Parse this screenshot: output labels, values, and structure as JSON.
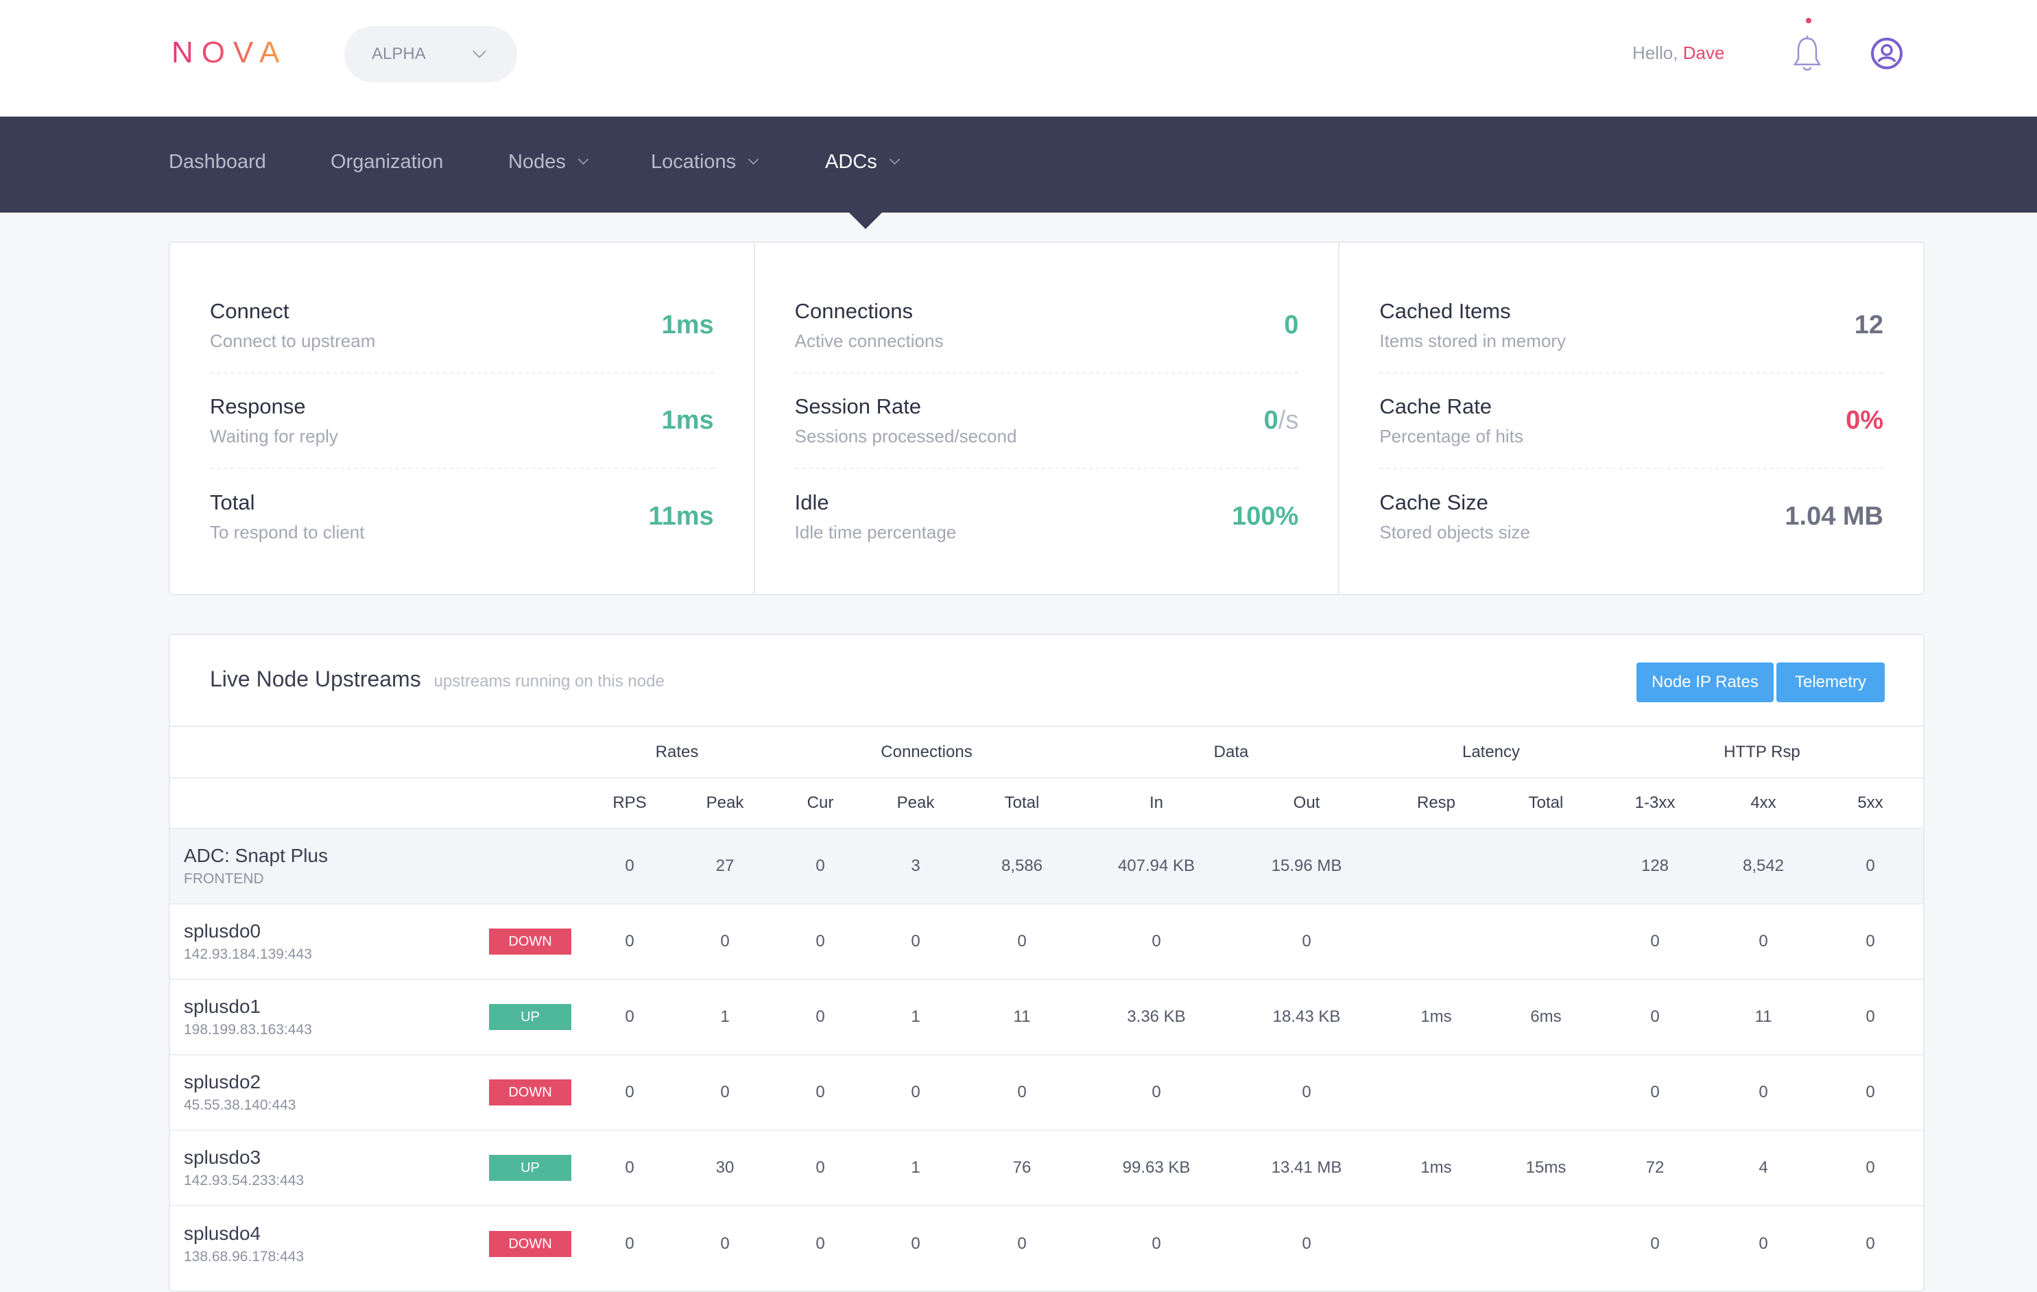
{
  "header": {
    "logo": "NOVA",
    "org_select": "ALPHA",
    "greeting": "Hello,",
    "user": "Dave",
    "icons": {
      "bell": "bell-icon",
      "user": "user-circle-icon"
    }
  },
  "nav": {
    "items": [
      {
        "label": "Dashboard",
        "dropdown": false
      },
      {
        "label": "Organization",
        "dropdown": false
      },
      {
        "label": "Nodes",
        "dropdown": true
      },
      {
        "label": "Locations",
        "dropdown": true
      },
      {
        "label": "ADCs",
        "dropdown": true,
        "active": true
      }
    ]
  },
  "stats": {
    "columns": [
      [
        {
          "title": "Connect",
          "subtitle": "Connect to upstream",
          "value": "1ms",
          "color": "#4fb89a"
        },
        {
          "title": "Response",
          "subtitle": "Waiting for reply",
          "value": "1ms",
          "color": "#4fb89a"
        },
        {
          "title": "Total",
          "subtitle": "To respond to client",
          "value": "11ms",
          "color": "#4fb89a"
        }
      ],
      [
        {
          "title": "Connections",
          "subtitle": "Active connections",
          "value": "0",
          "color": "#4fb89a"
        },
        {
          "title": "Session Rate",
          "subtitle": "Sessions processed/second",
          "value": "0",
          "unit": "/s",
          "color": "#4fb89a"
        },
        {
          "title": "Idle",
          "subtitle": "Idle time percentage",
          "value": "100%",
          "color": "#4fb89a"
        }
      ],
      [
        {
          "title": "Cached Items",
          "subtitle": "Items stored in memory",
          "value": "12",
          "color": "#6e7181"
        },
        {
          "title": "Cache Rate",
          "subtitle": "Percentage of hits",
          "value": "0%",
          "color": "#e8456a"
        },
        {
          "title": "Cache Size",
          "subtitle": "Stored objects size",
          "value": "1.04 MB",
          "color": "#6e7181"
        }
      ]
    ]
  },
  "upstreams": {
    "title": "Live Node Upstreams",
    "subtitle": "upstreams running on this node",
    "buttons": {
      "rates": "Node IP Rates",
      "telemetry": "Telemetry"
    },
    "groups": [
      "Rates",
      "Connections",
      "Data",
      "Latency",
      "HTTP Rsp"
    ],
    "columns": [
      "RPS",
      "Peak",
      "Cur",
      "Peak",
      "Total",
      "In",
      "Out",
      "Resp",
      "Total",
      "1-3xx",
      "4xx",
      "5xx"
    ],
    "rows": [
      {
        "name": "ADC: Snapt Plus",
        "sub": "FRONTEND",
        "status": "",
        "frontend": true,
        "values": [
          "0",
          "27",
          "0",
          "3",
          "8,586",
          "407.94 KB",
          "15.96 MB",
          "",
          "",
          "128",
          "8,542",
          "0"
        ]
      },
      {
        "name": "splusdo0",
        "sub": "142.93.184.139:443",
        "status": "DOWN",
        "values": [
          "0",
          "0",
          "0",
          "0",
          "0",
          "0",
          "0",
          "",
          "",
          "0",
          "0",
          "0"
        ]
      },
      {
        "name": "splusdo1",
        "sub": "198.199.83.163:443",
        "status": "UP",
        "values": [
          "0",
          "1",
          "0",
          "1",
          "11",
          "3.36 KB",
          "18.43 KB",
          "1ms",
          "6ms",
          "0",
          "11",
          "0"
        ]
      },
      {
        "name": "splusdo2",
        "sub": "45.55.38.140:443",
        "status": "DOWN",
        "values": [
          "0",
          "0",
          "0",
          "0",
          "0",
          "0",
          "0",
          "",
          "",
          "0",
          "0",
          "0"
        ]
      },
      {
        "name": "splusdo3",
        "sub": "142.93.54.233:443",
        "status": "UP",
        "values": [
          "0",
          "30",
          "0",
          "1",
          "76",
          "99.63 KB",
          "13.41 MB",
          "1ms",
          "15ms",
          "72",
          "4",
          "0"
        ]
      },
      {
        "name": "splusdo4",
        "sub": "138.68.96.178:443",
        "status": "DOWN",
        "values": [
          "0",
          "0",
          "0",
          "0",
          "0",
          "0",
          "0",
          "",
          "",
          "0",
          "0",
          "0"
        ]
      }
    ]
  }
}
